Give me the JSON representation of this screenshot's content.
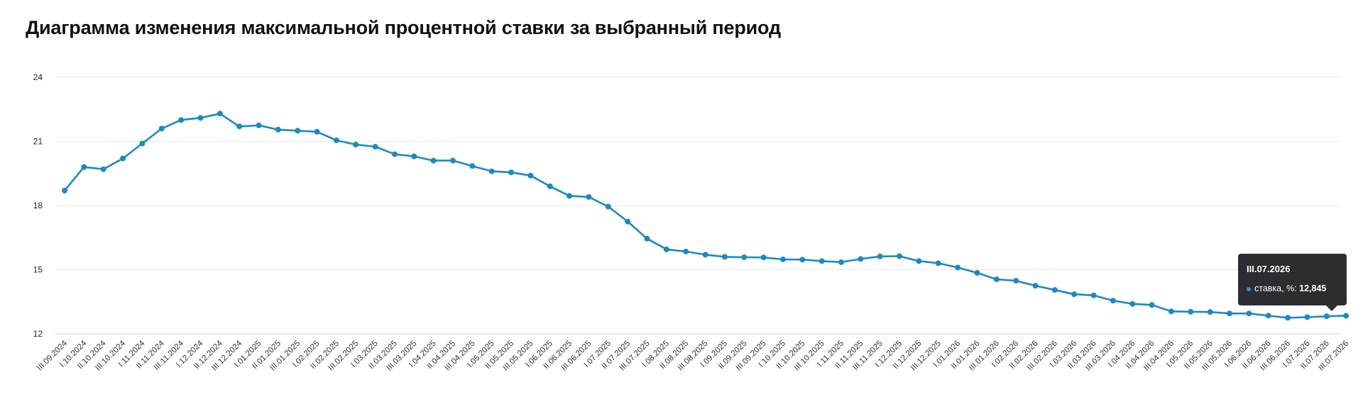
{
  "title": "Диаграмма изменения максимальной процентной ставки за выбранный период",
  "colors": {
    "line": "#1f88c2",
    "marker": "#1f88c2",
    "grid": "#e6e8eb",
    "hover_band": "#f1f1f2",
    "tooltip_bg": "#2b2d30"
  },
  "tooltip": {
    "date": "III.07.2026",
    "series_label": "ставка, %:",
    "value_text": "12,845"
  },
  "chart_data": {
    "type": "line",
    "title": "Диаграмма изменения максимальной процентной ставки за выбранный период",
    "xlabel": "",
    "ylabel": "",
    "ylim": [
      12,
      24
    ],
    "yticks": [
      12,
      15,
      18,
      21,
      24
    ],
    "grid": true,
    "hover_index": 68,
    "categories": [
      "III.09.2024",
      "I.10.2024",
      "II.10.2024",
      "III.10.2024",
      "I.11.2024",
      "II.11.2024",
      "III.11.2024",
      "I.12.2024",
      "II.12.2024",
      "III.12.2024",
      "I.01.2025",
      "II.01.2025",
      "III.01.2025",
      "I.02.2025",
      "II.02.2025",
      "III.02.2025",
      "I.03.2025",
      "II.03.2025",
      "III.03.2025",
      "I.04.2025",
      "II.04.2025",
      "III.04.2025",
      "I.05.2025",
      "II.05.2025",
      "III.05.2025",
      "I.06.2025",
      "II.06.2025",
      "III.06.2025",
      "I.07.2025",
      "II.07.2025",
      "III.07.2025",
      "I.08.2025",
      "II.08.2025",
      "III.08.2025",
      "I.09.2025",
      "II.09.2025",
      "III.09.2025",
      "I.10.2025",
      "II.10.2025",
      "III.10.2025",
      "I.11.2025",
      "II.11.2025",
      "III.11.2025",
      "I.12.2025",
      "II.12.2025",
      "III.12.2025",
      "I.01.2026",
      "II.01.2026",
      "III.01.2026",
      "I.02.2026",
      "II.02.2026",
      "III.02.2026",
      "I.03.2026",
      "II.03.2026",
      "III.03.2026",
      "I.04.2026",
      "II.04.2026",
      "III.04.2026",
      "I.05.2026",
      "II.05.2026",
      "III.05.2026",
      "I.06.2026",
      "II.06.2026",
      "III.06.2026",
      "I.07.2026",
      "II.07.2026",
      "III.07.2026"
    ],
    "series": [
      {
        "values": [
          18.7,
          19.8,
          19.7,
          20.2,
          20.9,
          21.6,
          22.0,
          22.1,
          22.3,
          21.7,
          21.75,
          21.55,
          21.5,
          21.45,
          21.05,
          20.85,
          20.75,
          20.4,
          20.3,
          20.1,
          20.1,
          19.85,
          19.6,
          19.55,
          19.4,
          18.9,
          18.45,
          18.4,
          17.95,
          17.25,
          16.45,
          15.95,
          15.85,
          15.7,
          15.6,
          15.58,
          15.57,
          15.48,
          15.47,
          15.4,
          15.35,
          15.5,
          15.62,
          15.63,
          15.4,
          15.3,
          15.1,
          14.85,
          14.55,
          14.48,
          14.25,
          14.05,
          13.85,
          13.8,
          13.55,
          13.4,
          13.35,
          13.05,
          13.03,
          13.02,
          12.95,
          12.95,
          12.85,
          12.75,
          12.78,
          12.82,
          12.845
        ]
      }
    ]
  }
}
